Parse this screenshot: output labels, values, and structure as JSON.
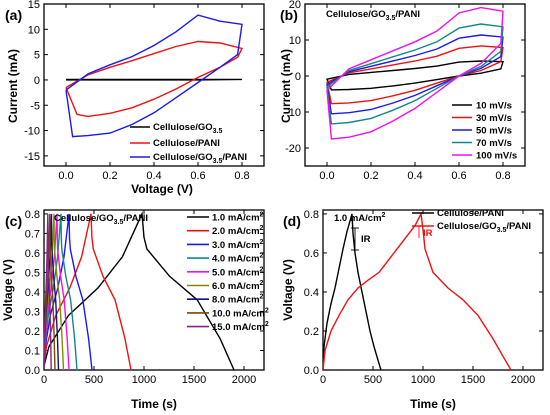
{
  "chart_data": [
    {
      "panel": "(a)",
      "type": "line",
      "xlabel": "Voltage (V)",
      "ylabel": "Current (mA)",
      "xlim": [
        -0.1,
        0.9
      ],
      "ylim": [
        -17,
        15
      ],
      "xticks": [
        "0.0",
        "0.2",
        "0.4",
        "0.6",
        "0.8"
      ],
      "yticks": [
        "-15",
        "-10",
        "-5",
        "0",
        "5",
        "10",
        "15"
      ],
      "legend_position": "bottom-right",
      "series": [
        {
          "name": "Cellulose/GO",
          "name_sub": "3.5",
          "color": "#000000",
          "x": [
            0.0,
            0.2,
            0.4,
            0.6,
            0.8,
            0.6,
            0.4,
            0.2,
            0.0
          ],
          "y": [
            0.1,
            0.1,
            0.1,
            0.1,
            0.1,
            0.0,
            0.0,
            0.0,
            0.0
          ]
        },
        {
          "name": "Cellulose/PANI",
          "name_sub": "",
          "color": "#ee1111",
          "x": [
            0.0,
            0.1,
            0.2,
            0.3,
            0.4,
            0.5,
            0.6,
            0.7,
            0.8,
            0.78,
            0.7,
            0.6,
            0.5,
            0.4,
            0.3,
            0.2,
            0.1,
            0.05,
            0.0
          ],
          "y": [
            -1.5,
            1.0,
            2.5,
            3.8,
            5.2,
            6.6,
            7.6,
            7.3,
            6.2,
            4.5,
            2.5,
            0.5,
            -1.8,
            -3.8,
            -5.5,
            -6.6,
            -7.2,
            -6.8,
            -1.5
          ]
        },
        {
          "name": "Cellulose/GO",
          "name_sub": "3.5",
          "name_suffix": "/PANI",
          "color": "#1a1aee",
          "x": [
            0.0,
            0.1,
            0.2,
            0.3,
            0.4,
            0.5,
            0.6,
            0.7,
            0.8,
            0.78,
            0.7,
            0.6,
            0.5,
            0.4,
            0.3,
            0.2,
            0.1,
            0.03,
            0.0
          ],
          "y": [
            -2.0,
            1.2,
            3.0,
            4.6,
            6.8,
            9.5,
            12.8,
            11.6,
            11.0,
            5.0,
            2.5,
            -0.5,
            -3.5,
            -6.5,
            -8.8,
            -10.5,
            -11.0,
            -11.2,
            -2.0
          ]
        }
      ]
    },
    {
      "panel": "(b)",
      "type": "line",
      "title": "Cellulose/GO",
      "title_sub": "3.5",
      "title_suffix": "/PANI",
      "xlabel": "",
      "ylabel": "Current (mA)",
      "xlim": [
        -0.1,
        0.9
      ],
      "ylim": [
        -25,
        20
      ],
      "xticks": [
        "0.0",
        "0.2",
        "0.4",
        "0.6",
        "0.8"
      ],
      "yticks": [
        "-20",
        "-10",
        "0",
        "10",
        "20"
      ],
      "legend_position": "bottom-right",
      "series": [
        {
          "name": "10 mV/s",
          "color": "#000000",
          "scale": 0.22
        },
        {
          "name": "30 mV/s",
          "color": "#ee1111",
          "scale": 0.44
        },
        {
          "name": "50 mV/s",
          "color": "#1a1aee",
          "scale": 0.6
        },
        {
          "name": "70 mV/s",
          "color": "#118888",
          "scale": 0.76
        },
        {
          "name": "100 mV/s",
          "color": "#ee11ee",
          "scale": 1.0
        }
      ],
      "base_curve": {
        "x": [
          0.0,
          0.1,
          0.2,
          0.3,
          0.4,
          0.5,
          0.6,
          0.7,
          0.8,
          0.79,
          0.7,
          0.6,
          0.5,
          0.4,
          0.3,
          0.2,
          0.1,
          0.02,
          0.0
        ],
        "y": [
          -4.0,
          2.0,
          4.5,
          7.0,
          9.5,
          12.5,
          17.5,
          19.0,
          18.0,
          9.0,
          3.5,
          0.0,
          -4.5,
          -9.0,
          -12.5,
          -15.5,
          -17.0,
          -17.5,
          -4.0
        ]
      }
    },
    {
      "panel": "(c)",
      "type": "line",
      "title": "Cellulose/GO",
      "title_sub": "3.5",
      "title_suffix": "/PANI",
      "xlabel": "Time (s)",
      "ylabel": "Voltage (V)",
      "xlim": [
        0,
        2200
      ],
      "ylim": [
        0,
        0.82
      ],
      "xticks": [
        "0",
        "500",
        "1000",
        "1500",
        "2000"
      ],
      "yticks": [
        "0.0",
        "0.1",
        "0.2",
        "0.3",
        "0.4",
        "0.5",
        "0.6",
        "0.7",
        "0.8"
      ],
      "legend_position": "top-right",
      "series": [
        {
          "name": "1.0 mA/cm",
          "sup": "2",
          "color": "#000000",
          "peak": 980,
          "end": 1900
        },
        {
          "name": "2.0 mA/cm",
          "sup": "2",
          "color": "#ee1111",
          "peak": 470,
          "end": 870
        },
        {
          "name": "3.0 mA/cm",
          "sup": "2",
          "color": "#1a1aee",
          "peak": 250,
          "end": 480
        },
        {
          "name": "4.0 mA/cm",
          "sup": "2",
          "color": "#118888",
          "peak": 170,
          "end": 330
        },
        {
          "name": "5.0 mA/cm",
          "sup": "2",
          "color": "#ee11ee",
          "peak": 130,
          "end": 250
        },
        {
          "name": "6.0 mA/cm",
          "sup": "2",
          "color": "#888800",
          "peak": 100,
          "end": 195
        },
        {
          "name": "8.0 mA/cm",
          "sup": "2",
          "color": "#111188",
          "peak": 75,
          "end": 145
        },
        {
          "name": "10.0 mA/cm",
          "sup": "2",
          "color": "#7a4a00",
          "peak": 58,
          "end": 110
        },
        {
          "name": "15.0 mA/cm",
          "sup": "2",
          "color": "#882288",
          "peak": 38,
          "end": 72
        }
      ]
    },
    {
      "panel": "(d)",
      "type": "line",
      "xlabel": "Time (s)",
      "ylabel": "Voltage (V)",
      "xlim": [
        0,
        2200
      ],
      "ylim": [
        0,
        0.82
      ],
      "xticks": [
        "0",
        "500",
        "1000",
        "1500",
        "2000"
      ],
      "yticks": [
        "0.0",
        "0.2",
        "0.4",
        "0.6",
        "0.8"
      ],
      "legend_position": "top-right",
      "note": "1.0 mA/cm",
      "note_sup": "2",
      "annotations": [
        {
          "text": "IR",
          "color": "#000000"
        },
        {
          "text": "IR",
          "color": "#ee1111"
        }
      ],
      "series": [
        {
          "name": "Cellulose/PANI",
          "color": "#000000",
          "x": [
            0,
            10,
            40,
            80,
            120,
            160,
            200,
            240,
            290,
            300,
            320,
            350,
            390,
            430,
            470,
            510,
            550,
            580
          ],
          "y": [
            0.0,
            0.12,
            0.24,
            0.34,
            0.42,
            0.52,
            0.62,
            0.71,
            0.8,
            0.7,
            0.6,
            0.5,
            0.4,
            0.3,
            0.2,
            0.12,
            0.05,
            0.0
          ]
        },
        {
          "name": "Cellulose/GO",
          "name_sub": "3.5",
          "name_suffix": "/PANI",
          "color": "#ee1111",
          "x": [
            0,
            20,
            80,
            160,
            250,
            350,
            450,
            560,
            680,
            800,
            920,
            980,
            1000,
            1020,
            1100,
            1250,
            1400,
            1550,
            1700,
            1800,
            1880
          ],
          "y": [
            0.0,
            0.1,
            0.2,
            0.28,
            0.36,
            0.42,
            0.46,
            0.5,
            0.58,
            0.66,
            0.74,
            0.8,
            0.72,
            0.62,
            0.5,
            0.42,
            0.36,
            0.28,
            0.16,
            0.07,
            0.0
          ]
        }
      ]
    }
  ]
}
